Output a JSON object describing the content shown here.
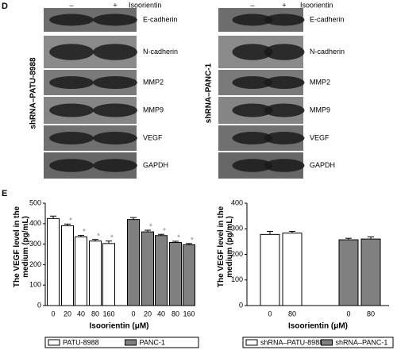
{
  "panel_d": {
    "label": "D",
    "blots": [
      {
        "cell_line": "shRNA–PATU-8988",
        "treatment": "Isoorientin",
        "lanes": [
          "–",
          "+"
        ],
        "proteins": [
          "E-cadherin",
          "N-cadherin",
          "MMP2",
          "MMP9",
          "VEGF",
          "GAPDH"
        ]
      },
      {
        "cell_line": "shRNA–PANC-1",
        "treatment": "Isoorientin",
        "lanes": [
          "–",
          "+"
        ],
        "proteins": [
          "E-cadherin",
          "N-cadherin",
          "MMP2",
          "MMP9",
          "VEGF",
          "GAPDH"
        ]
      }
    ]
  },
  "panel_e": {
    "label": "E"
  },
  "chart_data": [
    {
      "type": "bar",
      "ylabel": "The VEGF level in the medium (pg/mL)",
      "xlabel": "Isoorientin (μM)",
      "categories": [
        "0",
        "20",
        "40",
        "80",
        "160",
        "0",
        "20",
        "40",
        "80",
        "160"
      ],
      "ylim": [
        0,
        500
      ],
      "yticks": [
        0,
        100,
        200,
        300,
        400,
        500
      ],
      "series": [
        {
          "name": "PATU-8988",
          "color": "#ffffff",
          "values": [
            425,
            390,
            335,
            315,
            303,
            null,
            null,
            null,
            null,
            null
          ],
          "errors": [
            12,
            8,
            8,
            8,
            12,
            null,
            null,
            null,
            null,
            null
          ],
          "significance": [
            null,
            "*",
            "*",
            "*",
            "*",
            null,
            null,
            null,
            null,
            null
          ]
        },
        {
          "name": "PANC-1",
          "color": "#808080",
          "values": [
            null,
            null,
            null,
            null,
            null,
            420,
            360,
            342,
            308,
            297
          ],
          "errors": [
            null,
            null,
            null,
            null,
            null,
            10,
            8,
            6,
            6,
            6
          ],
          "significance": [
            null,
            null,
            null,
            null,
            null,
            null,
            "*",
            "*",
            "*",
            "*"
          ]
        }
      ]
    },
    {
      "type": "bar",
      "ylabel": "The VEGF level in the medium (pg/mL)",
      "xlabel": "Isoorientin (μM)",
      "categories": [
        "0",
        "80",
        "0",
        "80"
      ],
      "ylim": [
        0,
        400
      ],
      "yticks": [
        0,
        100,
        200,
        300,
        400
      ],
      "series": [
        {
          "name": "shRNA–PATU-8988",
          "color": "#ffffff",
          "values": [
            278,
            283,
            null,
            null
          ],
          "errors": [
            12,
            7,
            null,
            null
          ]
        },
        {
          "name": "shRNA–PANC-1",
          "color": "#808080",
          "values": [
            null,
            null,
            257,
            260
          ],
          "errors": [
            null,
            null,
            6,
            8
          ]
        }
      ]
    }
  ]
}
